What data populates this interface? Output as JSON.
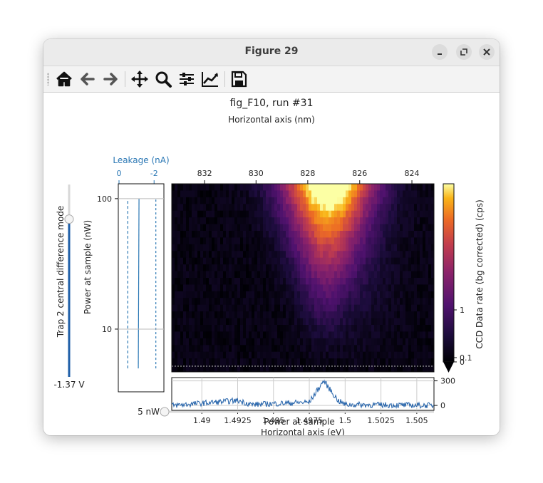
{
  "window": {
    "title": "Figure 29"
  },
  "toolbar": {
    "items": [
      "home-icon",
      "back-arrow-icon",
      "forward-arrow-icon",
      "pan-icon",
      "zoom-icon",
      "configure-subplots-icon",
      "edit-axes-icon",
      "save-icon"
    ]
  },
  "figure": {
    "title": "fig_F10, run #31",
    "top_axis_label": "Horizontal axis (nm)",
    "top_ticks": [
      "832",
      "830",
      "828",
      "826",
      "824"
    ],
    "bottom_axis_label": "Horizontal axis (eV)",
    "bottom_ticks": [
      "1.49",
      "1.4925",
      "1.495",
      "1.4975",
      "1.5",
      "1.5025",
      "1.505"
    ],
    "leakage_label": "Leakage (nA)",
    "leakage_ticks": [
      "0",
      "-2"
    ],
    "power_axis_label": "Power at sample (nW)",
    "power_ticks": [
      "100",
      "10"
    ],
    "colorbar_label": "CCD Data rate (bg corrected) (cps)",
    "colorbar_ticks": [
      "1",
      "0.1",
      "0"
    ],
    "spectrum_ticks": [
      "300",
      "0"
    ]
  },
  "vslider": {
    "label": "Trap 2 central difference mode",
    "value_text": "-1.37 V",
    "level_fraction": 0.82
  },
  "hslider": {
    "label": "Power at sample",
    "value_text": "5 nW",
    "level_fraction": 0.0
  },
  "chart_data": {
    "type": "heatmap",
    "title": "fig_F10, run #31",
    "xlabel": "Horizontal axis (eV)",
    "x2label": "Horizontal axis (nm)",
    "ylabel": "Power at sample (nW)",
    "colorbar_label": "CCD Data rate (bg corrected) (cps)",
    "xlim": [
      1.4879,
      1.5062
    ],
    "ylim_log": [
      4.7,
      130
    ],
    "colormap": "inferno",
    "peak": {
      "energy_ev": 1.4985,
      "wavelength_nm": 827.3
    },
    "spectrum_at_5nW": {
      "points": [
        [
          1.488,
          0
        ],
        [
          1.4925,
          60
        ],
        [
          1.4935,
          10
        ],
        [
          1.4975,
          40
        ],
        [
          1.4985,
          300
        ],
        [
          1.4995,
          60
        ],
        [
          1.5,
          10
        ],
        [
          1.506,
          0
        ]
      ],
      "ylim": [
        -60,
        340
      ]
    },
    "leakage_nA": {
      "lines": [
        [
          -0.5,
          5,
          100
        ],
        [
          -1.1,
          5,
          100
        ],
        [
          -2.1,
          5,
          100
        ]
      ]
    }
  }
}
